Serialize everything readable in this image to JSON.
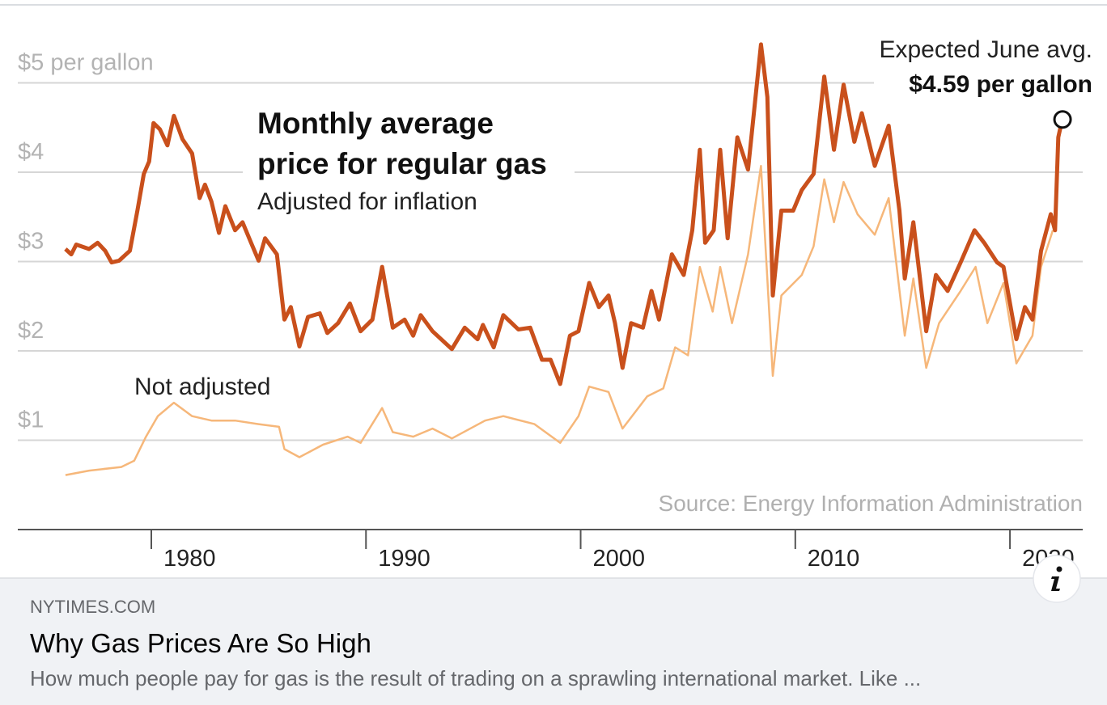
{
  "chart_data": {
    "type": "line",
    "title": [
      "Monthly average",
      "price for regular gas"
    ],
    "source": "Source: Energy Information Administration",
    "xlim": [
      1973.78,
      2023.39
    ],
    "ylim": [
      0,
      5.9
    ],
    "xticks": [
      1980,
      1990,
      2000,
      2010,
      2020
    ],
    "yticks": [
      {
        "value": 1,
        "label": "$1"
      },
      {
        "value": 2,
        "label": "$2"
      },
      {
        "value": 3,
        "label": "$3"
      },
      {
        "value": 4,
        "label": "$4"
      },
      {
        "value": 5,
        "label": "$5 per gallon"
      }
    ],
    "grid": true,
    "series": [
      {
        "name": "Adjusted for inflation",
        "color": "#c9501c",
        "x": [
          1976.0,
          1976.27,
          1976.5,
          1977.1,
          1977.5,
          1977.85,
          1978.15,
          1978.5,
          1979.0,
          1979.35,
          1979.65,
          1979.9,
          1980.1,
          1980.4,
          1980.75,
          1981.05,
          1981.45,
          1981.9,
          1982.25,
          1982.5,
          1982.8,
          1983.15,
          1983.45,
          1983.9,
          1984.25,
          1984.65,
          1985.0,
          1985.3,
          1985.85,
          1986.2,
          1986.5,
          1986.9,
          1987.3,
          1987.85,
          1988.2,
          1988.7,
          1989.25,
          1989.75,
          1990.3,
          1990.75,
          1991.25,
          1991.8,
          1992.2,
          1992.55,
          1993.1,
          1994.0,
          1994.6,
          1995.2,
          1995.45,
          1995.95,
          1996.4,
          1997.1,
          1997.65,
          1998.2,
          1998.6,
          1999.05,
          1999.5,
          1999.9,
          2000.4,
          2000.85,
          2001.3,
          2001.6,
          2001.95,
          2002.35,
          2002.9,
          2003.3,
          2003.65,
          2004.25,
          2004.8,
          2005.2,
          2005.55,
          2005.8,
          2006.2,
          2006.5,
          2006.85,
          2007.3,
          2007.8,
          2008.4,
          2008.7,
          2008.95,
          2009.35,
          2009.9,
          2010.3,
          2010.85,
          2011.35,
          2011.8,
          2012.25,
          2012.75,
          2013.1,
          2013.7,
          2014.35,
          2014.85,
          2015.1,
          2015.5,
          2016.1,
          2016.55,
          2017.1,
          2017.7,
          2018.35,
          2018.8,
          2019.4,
          2019.7,
          2020.3,
          2020.7,
          2021.05,
          2021.45,
          2021.9,
          2022.1,
          2022.25,
          2022.45
        ],
        "values": [
          3.14,
          3.08,
          3.19,
          3.14,
          3.21,
          3.12,
          2.99,
          3.01,
          3.12,
          3.57,
          3.98,
          4.12,
          4.55,
          4.48,
          4.3,
          4.63,
          4.37,
          4.21,
          3.71,
          3.86,
          3.67,
          3.32,
          3.62,
          3.35,
          3.44,
          3.21,
          3.01,
          3.26,
          3.08,
          2.35,
          2.49,
          2.05,
          2.38,
          2.42,
          2.2,
          2.31,
          2.53,
          2.22,
          2.35,
          2.94,
          2.26,
          2.35,
          2.17,
          2.4,
          2.22,
          2.02,
          2.26,
          2.13,
          2.29,
          2.04,
          2.4,
          2.24,
          2.26,
          1.9,
          1.9,
          1.63,
          2.17,
          2.22,
          2.76,
          2.49,
          2.62,
          2.31,
          1.81,
          2.31,
          2.26,
          2.67,
          2.35,
          3.08,
          2.85,
          3.35,
          4.25,
          3.21,
          3.35,
          4.25,
          3.26,
          4.39,
          4.03,
          5.43,
          4.84,
          2.62,
          3.57,
          3.57,
          3.8,
          3.98,
          5.07,
          4.25,
          4.98,
          4.34,
          4.66,
          4.07,
          4.52,
          3.57,
          2.81,
          3.44,
          2.22,
          2.85,
          2.67,
          2.99,
          3.35,
          3.21,
          2.99,
          2.94,
          2.13,
          2.49,
          2.35,
          3.12,
          3.53,
          3.35,
          4.39,
          4.61
        ]
      },
      {
        "name": "Not adjusted",
        "color": "#f6b77a",
        "x": [
          1976.0,
          1977.1,
          1978.6,
          1979.2,
          1979.75,
          1980.3,
          1981.05,
          1981.9,
          1982.8,
          1983.9,
          1985.0,
          1985.95,
          1986.2,
          1986.9,
          1988.0,
          1989.15,
          1989.75,
          1990.75,
          1991.25,
          1992.2,
          1993.1,
          1994.0,
          1995.55,
          1996.4,
          1997.85,
          1999.05,
          1999.9,
          2000.4,
          2001.3,
          2001.95,
          2003.1,
          2003.85,
          2004.4,
          2005.0,
          2005.55,
          2006.15,
          2006.5,
          2007.05,
          2007.8,
          2008.4,
          2008.95,
          2009.35,
          2010.3,
          2010.85,
          2011.35,
          2011.8,
          2012.25,
          2012.9,
          2013.7,
          2014.35,
          2015.1,
          2015.5,
          2016.1,
          2016.7,
          2017.7,
          2018.4,
          2018.95,
          2019.7,
          2020.3,
          2021.05,
          2021.45,
          2022.0
        ],
        "values": [
          0.61,
          0.66,
          0.7,
          0.77,
          1.04,
          1.27,
          1.42,
          1.27,
          1.22,
          1.22,
          1.18,
          1.15,
          0.9,
          0.81,
          0.95,
          1.04,
          0.97,
          1.36,
          1.09,
          1.04,
          1.13,
          1.02,
          1.22,
          1.27,
          1.18,
          0.97,
          1.27,
          1.6,
          1.54,
          1.13,
          1.49,
          1.58,
          2.04,
          1.95,
          2.94,
          2.44,
          2.94,
          2.31,
          3.08,
          4.07,
          1.72,
          2.62,
          2.85,
          3.17,
          3.92,
          3.44,
          3.89,
          3.53,
          3.3,
          3.71,
          2.17,
          2.81,
          1.81,
          2.31,
          2.67,
          2.94,
          2.31,
          2.76,
          1.86,
          2.17,
          2.94,
          3.35
        ]
      }
    ],
    "annotation": {
      "text": "Expected June avg.",
      "label": "$4.59 per gallon",
      "value": 4.59,
      "x": 2022.45
    }
  },
  "link_preview": {
    "domain": "NYTIMES.COM",
    "title": "Why Gas Prices Are So High",
    "description": "How much people pay for gas is the result of trading on a sprawling international market. Like ..."
  }
}
